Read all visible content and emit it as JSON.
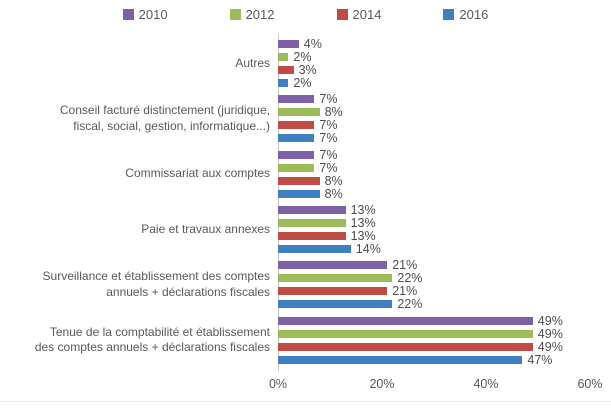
{
  "chart_data": {
    "type": "bar",
    "orientation": "horizontal",
    "title": "",
    "legend_position": "top",
    "grid": false,
    "value_suffix": "%",
    "x_ticks": [
      "0%",
      "20%",
      "40%",
      "60%"
    ],
    "xlim": [
      0,
      60
    ],
    "categories": [
      "Autres",
      "Conseil facturé distinctement (juridique,\nfiscal, social, gestion, informatique...)",
      "Commissariat aux comptes",
      "Paie et travaux annexes",
      "Surveillance et établissement des comptes\nannuels + déclarations fiscales",
      "Tenue de la comptabilité et établissement\ndes comptes annuels + déclarations fiscales"
    ],
    "series": [
      {
        "name": "2010",
        "color": "#7d60a6",
        "values": [
          4,
          7,
          7,
          13,
          21,
          49
        ]
      },
      {
        "name": "2012",
        "color": "#9cbb59",
        "values": [
          2,
          8,
          7,
          13,
          22,
          49
        ]
      },
      {
        "name": "2014",
        "color": "#bf4b47",
        "values": [
          3,
          7,
          8,
          13,
          21,
          49
        ]
      },
      {
        "name": "2016",
        "color": "#3e7fc1",
        "values": [
          2,
          7,
          8,
          14,
          22,
          47
        ]
      }
    ]
  }
}
